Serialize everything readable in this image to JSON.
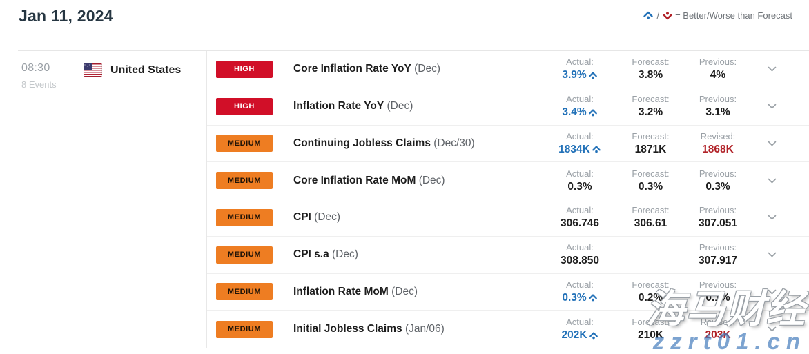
{
  "header": {
    "date": "Jan 11, 2024",
    "legend_separator": "/",
    "legend_text": "= Better/Worse than Forecast"
  },
  "group": {
    "time": "08:30",
    "events_count": "8 Events",
    "country": "United States"
  },
  "colors": {
    "high_badge": "#d10f28",
    "medium_badge": "#ee7d22",
    "better_blue": "#2271b8",
    "revised_red": "#b12228"
  },
  "events": [
    {
      "impact": "HIGH",
      "title": "Core Inflation Rate YoY",
      "period": "(Dec)",
      "cols": [
        {
          "label": "Actual:",
          "value": "3.9%",
          "style": "better"
        },
        {
          "label": "Forecast:",
          "value": "3.8%",
          "style": "normal"
        },
        {
          "label": "Previous:",
          "value": "4%",
          "style": "normal"
        }
      ]
    },
    {
      "impact": "HIGH",
      "title": "Inflation Rate YoY",
      "period": "(Dec)",
      "cols": [
        {
          "label": "Actual:",
          "value": "3.4%",
          "style": "better"
        },
        {
          "label": "Forecast:",
          "value": "3.2%",
          "style": "normal"
        },
        {
          "label": "Previous:",
          "value": "3.1%",
          "style": "normal"
        }
      ]
    },
    {
      "impact": "MEDIUM",
      "title": "Continuing Jobless Claims",
      "period": "(Dec/30)",
      "cols": [
        {
          "label": "Actual:",
          "value": "1834K",
          "style": "better"
        },
        {
          "label": "Forecast:",
          "value": "1871K",
          "style": "normal"
        },
        {
          "label": "Revised:",
          "value": "1868K",
          "style": "revised"
        }
      ]
    },
    {
      "impact": "MEDIUM",
      "title": "Core Inflation Rate MoM",
      "period": "(Dec)",
      "cols": [
        {
          "label": "Actual:",
          "value": "0.3%",
          "style": "normal"
        },
        {
          "label": "Forecast:",
          "value": "0.3%",
          "style": "normal"
        },
        {
          "label": "Previous:",
          "value": "0.3%",
          "style": "normal"
        }
      ]
    },
    {
      "impact": "MEDIUM",
      "title": "CPI",
      "period": "(Dec)",
      "cols": [
        {
          "label": "Actual:",
          "value": "306.746",
          "style": "normal"
        },
        {
          "label": "Forecast:",
          "value": "306.61",
          "style": "normal"
        },
        {
          "label": "Previous:",
          "value": "307.051",
          "style": "normal"
        }
      ]
    },
    {
      "impact": "MEDIUM",
      "title": "CPI s.a",
      "period": "(Dec)",
      "cols": [
        {
          "label": "Actual:",
          "value": "308.850",
          "style": "normal"
        },
        {
          "label": "",
          "value": "",
          "style": "empty"
        },
        {
          "label": "Previous:",
          "value": "307.917",
          "style": "normal"
        }
      ]
    },
    {
      "impact": "MEDIUM",
      "title": "Inflation Rate MoM",
      "period": "(Dec)",
      "cols": [
        {
          "label": "Actual:",
          "value": "0.3%",
          "style": "better"
        },
        {
          "label": "Forecast:",
          "value": "0.2%",
          "style": "normal"
        },
        {
          "label": "Previous:",
          "value": "0.1%",
          "style": "normal"
        }
      ]
    },
    {
      "impact": "MEDIUM",
      "title": "Initial Jobless Claims",
      "period": "(Jan/06)",
      "cols": [
        {
          "label": "Actual:",
          "value": "202K",
          "style": "better"
        },
        {
          "label": "Forecast:",
          "value": "210K",
          "style": "normal"
        },
        {
          "label": "Revised:",
          "value": "203K",
          "style": "revised"
        }
      ]
    }
  ],
  "watermark": {
    "line1": "海马财经",
    "line2": "zzrt01.cn"
  }
}
